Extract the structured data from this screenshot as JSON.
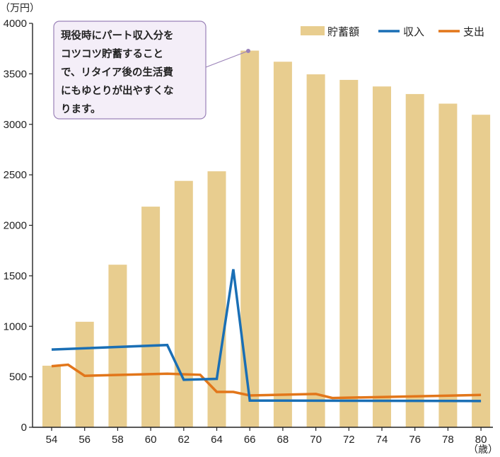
{
  "chart_data": {
    "type": "bar",
    "x": [
      54,
      55,
      56,
      57,
      58,
      59,
      60,
      61,
      62,
      63,
      64,
      65,
      66,
      67,
      68,
      69,
      70,
      71,
      72,
      73,
      74,
      75,
      76,
      77,
      78,
      79,
      80
    ],
    "bar_categories": [
      "54",
      "56",
      "58",
      "60",
      "62",
      "64",
      "66",
      "68",
      "70",
      "72",
      "74",
      "76",
      "78",
      "80"
    ],
    "x_tick_labels": [
      "54",
      "56",
      "58",
      "60",
      "62",
      "64",
      "66",
      "68",
      "70",
      "72",
      "74",
      "76",
      "78",
      "80"
    ],
    "y_ticks": [
      "0",
      "500",
      "1000",
      "1500",
      "2000",
      "2500",
      "3000",
      "3500",
      "4000"
    ],
    "ylim": [
      0,
      4000
    ],
    "xlim": [
      53,
      81
    ],
    "y_unit": "（万円）",
    "x_unit": "（歳）",
    "series": [
      {
        "name": "貯蓄額",
        "type": "bar",
        "color": "#e8cd8f",
        "x": [
          54,
          56,
          58,
          60,
          62,
          64,
          66,
          68,
          70,
          72,
          74,
          76,
          78,
          80
        ],
        "values": [
          610,
          1045,
          1610,
          2185,
          2440,
          2535,
          3730,
          3620,
          3495,
          3440,
          3375,
          3300,
          3205,
          3095
        ]
      },
      {
        "name": "収入",
        "type": "line",
        "color": "#1a6fb5",
        "points": [
          [
            54,
            770
          ],
          [
            61,
            815
          ],
          [
            62,
            470
          ],
          [
            64,
            480
          ],
          [
            65,
            1565
          ],
          [
            66,
            265
          ],
          [
            80,
            260
          ]
        ]
      },
      {
        "name": "支出",
        "type": "line",
        "color": "#e2761a",
        "points": [
          [
            54,
            605
          ],
          [
            55,
            620
          ],
          [
            56,
            510
          ],
          [
            61,
            530
          ],
          [
            63,
            520
          ],
          [
            64,
            350
          ],
          [
            65,
            350
          ],
          [
            66,
            315
          ],
          [
            70,
            330
          ],
          [
            71,
            290
          ],
          [
            80,
            320
          ]
        ]
      }
    ],
    "annotation": {
      "lines": [
        "現役時にパート収入分を",
        "コツコツ貯蓄することで、リタイア後の生活費",
        "にもゆとりが出やすくな",
        "ります。"
      ],
      "text_lines": [
        "現役時にパート収入分を",
        "コツコツ貯蓄すること",
        "で、リタイア後の生活費",
        "にもゆとりが出やすくな",
        "ります。"
      ],
      "points_to": [
        66,
        3730
      ],
      "border_color": "#9a82b8",
      "fill_color": "#f4eef8"
    },
    "legend_position": "top-right",
    "grid": false
  }
}
